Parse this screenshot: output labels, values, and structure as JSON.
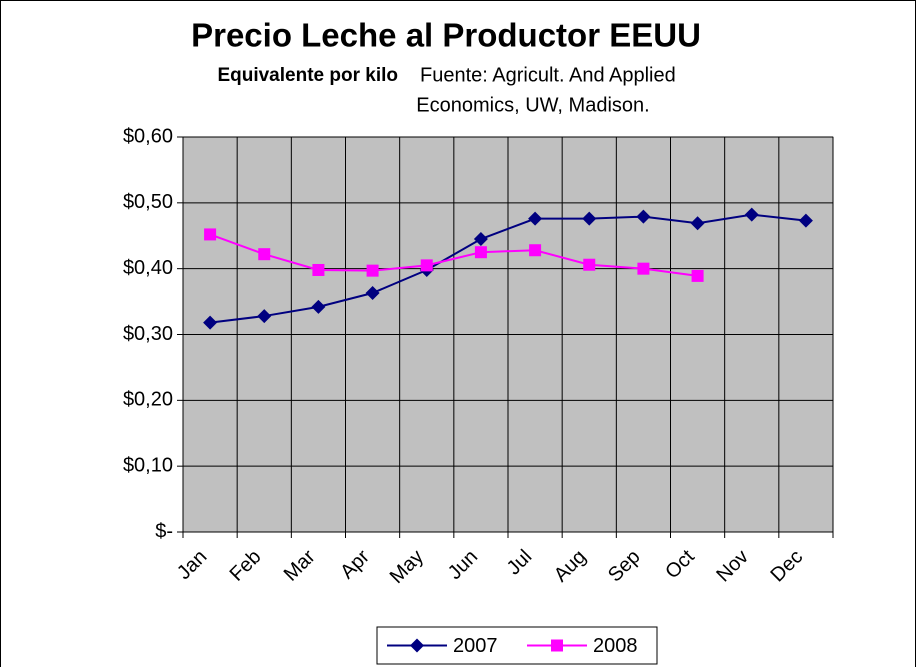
{
  "chart_data": {
    "type": "line",
    "title": "Precio Leche al Productor EEUU",
    "subtitle": [
      "Equivalente por kilo",
      "Fuente: Agricult. And Applied",
      "Economics, UW, Madison."
    ],
    "categories": [
      "Jan",
      "Feb",
      "Mar",
      "Apr",
      "May",
      "Jun",
      "Jul",
      "Aug",
      "Sep",
      "Oct",
      "Nov",
      "Dec"
    ],
    "series": [
      {
        "name": "2007",
        "color": "#000080",
        "marker": "diamond",
        "values": [
          0.318,
          0.328,
          0.342,
          0.363,
          0.398,
          0.445,
          0.476,
          0.476,
          0.479,
          0.469,
          0.482,
          0.473
        ]
      },
      {
        "name": "2008",
        "color": "#ff00ff",
        "marker": "square",
        "values": [
          0.452,
          0.422,
          0.398,
          0.397,
          0.405,
          0.425,
          0.428,
          0.406,
          0.4,
          0.389,
          null,
          null
        ]
      }
    ],
    "ylim": [
      0,
      0.6
    ],
    "yticks": [
      {
        "value": 0,
        "label": "$-"
      },
      {
        "value": 0.1,
        "label": "$0,10"
      },
      {
        "value": 0.2,
        "label": "$0,20"
      },
      {
        "value": 0.3,
        "label": "$0,30"
      },
      {
        "value": 0.4,
        "label": "$0,40"
      },
      {
        "value": 0.5,
        "label": "$0,50"
      },
      {
        "value": 0.6,
        "label": "$0,60"
      }
    ],
    "grid": true,
    "legend": "bottom"
  }
}
